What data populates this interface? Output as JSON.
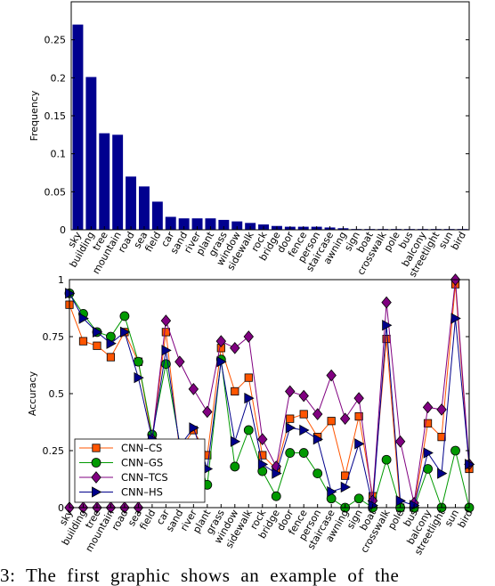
{
  "chart_data": [
    {
      "type": "bar",
      "ylabel": "Frequency",
      "xlabel": "",
      "ylim": [
        0,
        0.3
      ],
      "yticks": [
        "0",
        "0.05",
        "0.1",
        "0.15",
        "0.2",
        "0.25"
      ],
      "ytick_values": [
        0,
        0.05,
        0.1,
        0.15,
        0.2,
        0.25
      ],
      "bar_color": "#00008f",
      "categories": [
        "sky",
        "building",
        "tree",
        "mountain",
        "road",
        "sea",
        "field",
        "car",
        "sand",
        "river",
        "plant",
        "grass",
        "window",
        "sidewalk",
        "rock",
        "bridge",
        "door",
        "fence",
        "person",
        "staircase",
        "awning",
        "sign",
        "boat",
        "crosswalk",
        "pole",
        "bus",
        "balcony",
        "streetlight",
        "sun",
        "bird"
      ],
      "values": [
        0.27,
        0.201,
        0.127,
        0.125,
        0.07,
        0.057,
        0.037,
        0.017,
        0.015,
        0.015,
        0.015,
        0.013,
        0.011,
        0.009,
        0.007,
        0.005,
        0.004,
        0.004,
        0.004,
        0.003,
        0.002,
        0.001,
        0.001,
        0.001,
        0.001,
        0.001,
        0.001,
        0.001,
        0.001,
        0.001
      ]
    },
    {
      "type": "line",
      "ylabel": "Accuracy",
      "xlabel": "",
      "ylim": [
        0,
        1
      ],
      "yticks": [
        "0",
        "0.25",
        "0.5",
        "0.75",
        "1"
      ],
      "ytick_values": [
        0,
        0.25,
        0.5,
        0.75,
        1
      ],
      "categories": [
        "sky",
        "building",
        "tree",
        "mountain",
        "road",
        "sea",
        "field",
        "car",
        "sand",
        "river",
        "plant",
        "grass",
        "window",
        "sidewalk",
        "rock",
        "bridge",
        "door",
        "fence",
        "person",
        "staircase",
        "awning",
        "sign",
        "boat",
        "crosswalk",
        "pole",
        "bus",
        "balcony",
        "streetlight",
        "sun",
        "bird"
      ],
      "legend_position": "bottom-left",
      "series": [
        {
          "name": "CNN–CS",
          "color": "#ff5500",
          "marker": "square",
          "values": [
            0.89,
            0.73,
            0.71,
            0.66,
            0.77,
            0.64,
            0.3,
            0.77,
            0.25,
            0.34,
            0.23,
            0.7,
            0.51,
            0.57,
            0.23,
            0.17,
            0.39,
            0.41,
            0.31,
            0.38,
            0.14,
            0.4,
            0.05,
            0.74,
            0.0,
            0.0,
            0.37,
            0.31,
            0.98,
            0.17
          ]
        },
        {
          "name": "CNN–GS",
          "color": "#009900",
          "marker": "circle",
          "values": [
            0.94,
            0.85,
            0.77,
            0.75,
            0.84,
            0.64,
            0.32,
            0.63,
            0.28,
            0.27,
            0.1,
            0.65,
            0.18,
            0.34,
            0.16,
            0.05,
            0.24,
            0.24,
            0.15,
            0.04,
            0.0,
            0.04,
            0.0,
            0.21,
            0.0,
            0.0,
            0.17,
            0.0,
            0.25,
            0.0
          ]
        },
        {
          "name": "CNN–TCS",
          "color": "#800080",
          "marker": "diamond",
          "values": [
            0.0,
            0.0,
            0.0,
            0.0,
            0.0,
            0.0,
            0.3,
            0.82,
            0.64,
            0.52,
            0.42,
            0.73,
            0.7,
            0.75,
            0.3,
            0.18,
            0.51,
            0.49,
            0.41,
            0.58,
            0.39,
            0.48,
            0.03,
            0.9,
            0.29,
            0.02,
            0.44,
            0.43,
            1.0,
            0.19
          ]
        },
        {
          "name": "CNN–HS",
          "color": "#00008b",
          "marker": "triangle",
          "values": [
            0.94,
            0.83,
            0.77,
            0.72,
            0.77,
            0.57,
            0.3,
            0.69,
            0.27,
            0.35,
            0.17,
            0.64,
            0.29,
            0.48,
            0.19,
            0.15,
            0.35,
            0.34,
            0.3,
            0.07,
            0.09,
            0.28,
            0.01,
            0.8,
            0.03,
            0.01,
            0.24,
            0.15,
            0.83,
            0.19
          ]
        }
      ]
    }
  ],
  "caption": "3: The first graphic shows an example of the"
}
